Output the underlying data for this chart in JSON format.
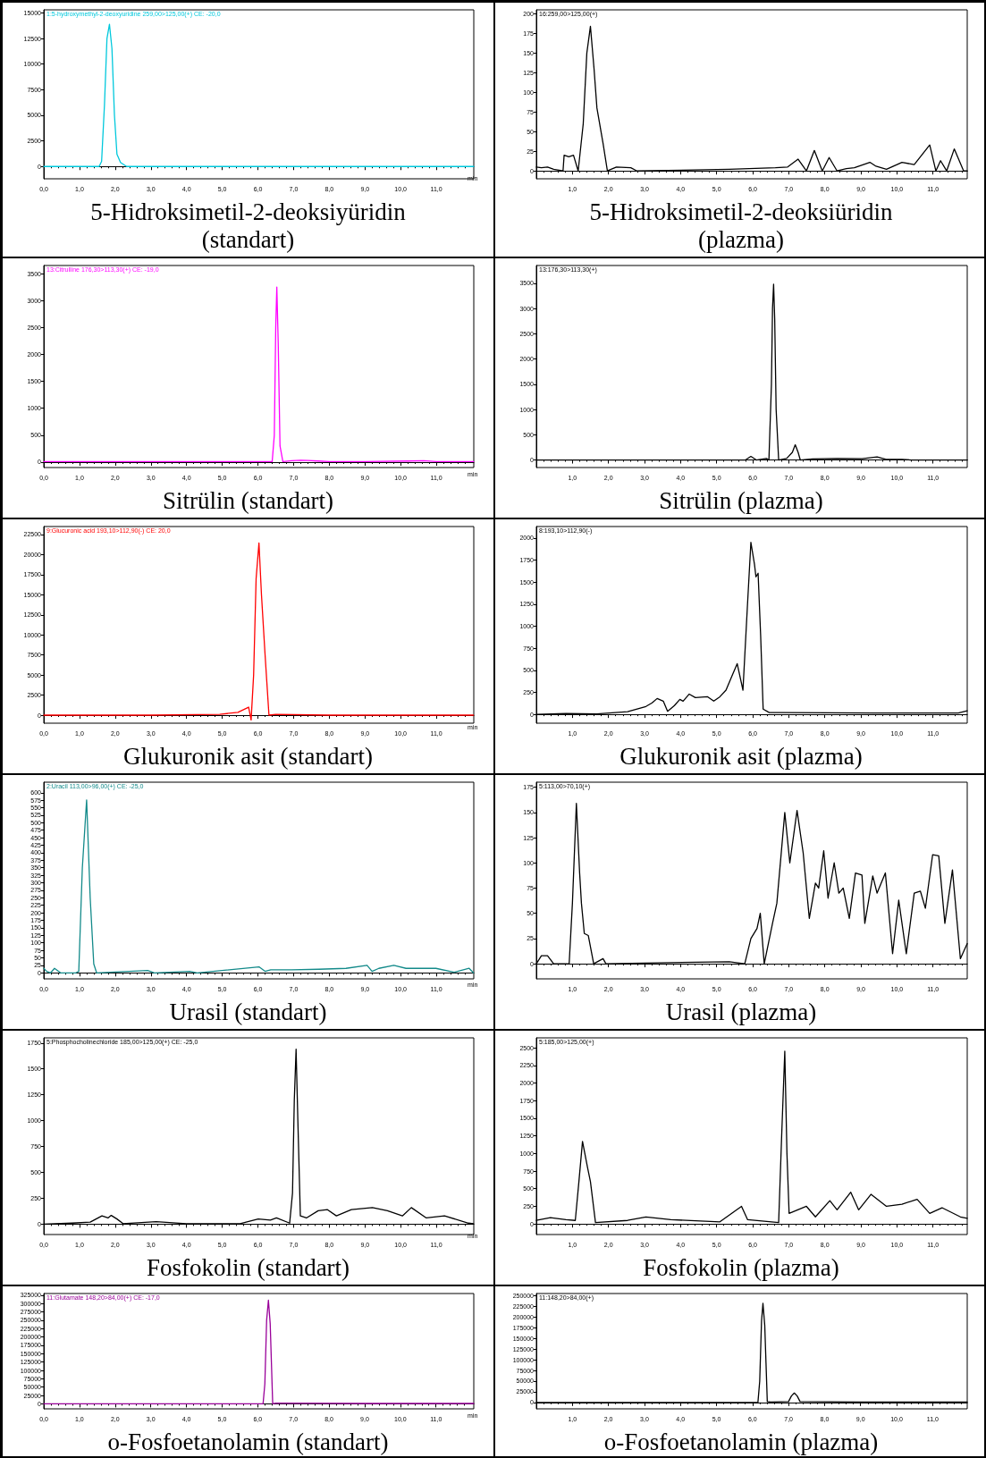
{
  "chart_data": [
    {
      "type": "line",
      "title": "5-Hidroksimetil-2-deoksiyüridin (standart)",
      "subtitle": "1:5-hydroxymethyl-2-deoxyuridine 259,00>125,00(+) CE: -20,0",
      "xlabel": "min",
      "marker": "none",
      "xlim": [
        0,
        12.05
      ],
      "ylim": [
        -1200,
        15300
      ],
      "xticks": [
        {
          "value": 0,
          "label": "0,0"
        },
        {
          "value": 1,
          "label": "1,0"
        },
        {
          "value": 2,
          "label": "2,0"
        },
        {
          "value": 3,
          "label": "3,0"
        },
        {
          "value": 4,
          "label": "4,0"
        },
        {
          "value": 5,
          "label": "5,0"
        },
        {
          "value": 6,
          "label": "6,0"
        },
        {
          "value": 7,
          "label": "7,0"
        },
        {
          "value": 8,
          "label": "8,0"
        },
        {
          "value": 9,
          "label": "9,0"
        },
        {
          "value": 10,
          "label": "10,0"
        },
        {
          "value": 11,
          "label": "11,0"
        }
      ],
      "yticks": [
        0,
        2500,
        5000,
        7500,
        10000,
        12500,
        15000
      ],
      "series": [
        {
          "color": "#00c8dc",
          "x": [
            0,
            0.5,
            1.0,
            1.55,
            1.62,
            1.7,
            1.77,
            1.84,
            1.91,
            1.98,
            2.05,
            2.15,
            2.32,
            3,
            5,
            7,
            9,
            11,
            12.05
          ],
          "values": [
            0,
            0,
            0,
            0,
            500,
            6000,
            12500,
            13900,
            11500,
            5000,
            1200,
            400,
            0,
            0,
            0,
            0,
            0,
            0,
            0
          ]
        }
      ]
    },
    {
      "type": "line",
      "title": "5-Hidroksimetil-2-deoksiüridin (plazma)",
      "subtitle": "16:259,00>125,00(+)",
      "marker": "none",
      "xlim": [
        0,
        11.95
      ],
      "ylim": [
        -10,
        205
      ],
      "xticks": [
        {
          "value": 1,
          "label": "1,0"
        },
        {
          "value": 2,
          "label": "2,0"
        },
        {
          "value": 3,
          "label": "3,0"
        },
        {
          "value": 4,
          "label": "4,0"
        },
        {
          "value": 5,
          "label": "5,0"
        },
        {
          "value": 6,
          "label": "6,0"
        },
        {
          "value": 7,
          "label": "7,0"
        },
        {
          "value": 8,
          "label": "8,0"
        },
        {
          "value": 9,
          "label": "9,0"
        },
        {
          "value": 10,
          "label": "10,0"
        },
        {
          "value": 11,
          "label": "11,0"
        }
      ],
      "yticks": [
        0,
        25,
        50,
        75,
        100,
        125,
        150,
        175,
        200
      ],
      "series": [
        {
          "color": "#000000",
          "x": [
            0,
            0.14,
            0.31,
            0.48,
            0.74,
            0.77,
            0.9,
            1.03,
            1.16,
            1.3,
            1.4,
            1.5,
            1.6,
            1.68,
            1.85,
            1.97,
            2.22,
            2.62,
            2.79,
            5.35,
            6.63,
            6.97,
            7.26,
            7.49,
            7.71,
            7.93,
            8.12,
            8.34,
            8.6,
            8.82,
            9.25,
            9.42,
            9.71,
            10.14,
            10.48,
            10.91,
            11.08,
            11.21,
            11.38,
            11.59,
            11.85,
            11.95
          ],
          "values": [
            5,
            4,
            5,
            2,
            0,
            20,
            18,
            20,
            0,
            60,
            150,
            184,
            130,
            80,
            35,
            0,
            5,
            4,
            0,
            2,
            4,
            5,
            15,
            0,
            26,
            0,
            17,
            0,
            3,
            4,
            11,
            6,
            2,
            11,
            8,
            33,
            0,
            13,
            0,
            28,
            0,
            0
          ]
        }
      ]
    },
    {
      "type": "line",
      "title": "Sitrülin (standart)",
      "subtitle": "13:Citrulline 176,30>113,30(+) CE: -19,0",
      "xlabel": "min",
      "marker": "none",
      "xlim": [
        0,
        12.05
      ],
      "ylim": [
        -100,
        3650
      ],
      "xticks": [
        {
          "value": 0,
          "label": "0,0"
        },
        {
          "value": 1,
          "label": "1,0"
        },
        {
          "value": 2,
          "label": "2,0"
        },
        {
          "value": 3,
          "label": "3,0"
        },
        {
          "value": 4,
          "label": "4,0"
        },
        {
          "value": 5,
          "label": "5,0"
        },
        {
          "value": 6,
          "label": "6,0"
        },
        {
          "value": 7,
          "label": "7,0"
        },
        {
          "value": 8,
          "label": "8,0"
        },
        {
          "value": 9,
          "label": "9,0"
        },
        {
          "value": 10,
          "label": "10,0"
        },
        {
          "value": 11,
          "label": "11,0"
        }
      ],
      "yticks": [
        0,
        500,
        1000,
        1500,
        2000,
        2500,
        3000,
        3500
      ],
      "series": [
        {
          "color": "#ff00ff",
          "x": [
            0,
            2,
            4,
            6,
            6.4,
            6.46,
            6.5,
            6.53,
            6.57,
            6.62,
            6.7,
            6.95,
            7.2,
            7.4,
            7.7,
            8,
            9,
            10.2,
            10.65,
            11,
            12.05
          ],
          "values": [
            10,
            10,
            10,
            10,
            10,
            500,
            2500,
            3250,
            2200,
            300,
            10,
            25,
            35,
            30,
            20,
            10,
            10,
            20,
            25,
            10,
            10
          ]
        }
      ]
    },
    {
      "type": "line",
      "title": "Sitrülin (plazma)",
      "subtitle": "13:176,30>113,30(+)",
      "marker": "none",
      "xlim": [
        0,
        11.95
      ],
      "ylim": [
        -150,
        3850
      ],
      "xticks": [
        {
          "value": 1,
          "label": "1,0"
        },
        {
          "value": 2,
          "label": "2,0"
        },
        {
          "value": 3,
          "label": "3,0"
        },
        {
          "value": 4,
          "label": "4,0"
        },
        {
          "value": 5,
          "label": "5,0"
        },
        {
          "value": 6,
          "label": "6,0"
        },
        {
          "value": 7,
          "label": "7,0"
        },
        {
          "value": 8,
          "label": "8,0"
        },
        {
          "value": 9,
          "label": "9,0"
        },
        {
          "value": 10,
          "label": "10,0"
        },
        {
          "value": 11,
          "label": "11,0"
        }
      ],
      "yticks": [
        0,
        500,
        1000,
        1500,
        2000,
        2500,
        3000,
        3500
      ],
      "series": [
        {
          "color": "#000000",
          "x": [
            0,
            3,
            5.8,
            5.95,
            6.1,
            6.38,
            6.45,
            6.52,
            6.55,
            6.58,
            6.61,
            6.65,
            6.72,
            6.94,
            7.1,
            7.18,
            7.26,
            7.32,
            7.66,
            8.34,
            9.03,
            9.45,
            9.7,
            10.14,
            10.4,
            11.95
          ],
          "values": [
            0,
            0,
            0,
            70,
            0,
            30,
            0,
            1500,
            3000,
            3480,
            2800,
            1000,
            0,
            30,
            150,
            300,
            150,
            0,
            20,
            30,
            25,
            60,
            10,
            10,
            0,
            0
          ]
        }
      ]
    },
    {
      "type": "line",
      "title": "Glukuronik asit (standart)",
      "subtitle": "9:Glucuronic acid 193,10>112,90(-) CE: 20,0",
      "xlabel": "min",
      "marker": "none",
      "xlim": [
        0,
        12.05
      ],
      "ylim": [
        -1000,
        23500
      ],
      "xticks": [
        {
          "value": 0,
          "label": "0,0"
        },
        {
          "value": 1,
          "label": "1,0"
        },
        {
          "value": 2,
          "label": "2,0"
        },
        {
          "value": 3,
          "label": "3,0"
        },
        {
          "value": 4,
          "label": "4,0"
        },
        {
          "value": 5,
          "label": "5,0"
        },
        {
          "value": 6,
          "label": "6,0"
        },
        {
          "value": 7,
          "label": "7,0"
        },
        {
          "value": 8,
          "label": "8,0"
        },
        {
          "value": 9,
          "label": "9,0"
        },
        {
          "value": 10,
          "label": "10,0"
        },
        {
          "value": 11,
          "label": "11,0"
        }
      ],
      "yticks": [
        0,
        2500,
        5000,
        7500,
        10000,
        12500,
        15000,
        17500,
        20000,
        22500
      ],
      "series": [
        {
          "color": "#ff0000",
          "x": [
            0,
            3,
            4.93,
            5.44,
            5.74,
            5.81,
            5.88,
            5.95,
            6.03,
            6.1,
            6.2,
            6.31,
            6.5,
            8,
            12.04
          ],
          "values": [
            0,
            0,
            100,
            350,
            1000,
            -600,
            5000,
            17000,
            21450,
            15000,
            7600,
            0,
            100,
            0,
            0
          ]
        }
      ]
    },
    {
      "type": "line",
      "title": "Glukuronik asit (plazma)",
      "subtitle": "8:193,10>112,90(-)",
      "marker": "none",
      "xlim": [
        0,
        11.95
      ],
      "ylim": [
        -100,
        2130
      ],
      "xticks": [
        {
          "value": 1,
          "label": "1,0"
        },
        {
          "value": 2,
          "label": "2,0"
        },
        {
          "value": 3,
          "label": "3,0"
        },
        {
          "value": 4,
          "label": "4,0"
        },
        {
          "value": 5,
          "label": "5,0"
        },
        {
          "value": 6,
          "label": "6,0"
        },
        {
          "value": 7,
          "label": "7,0"
        },
        {
          "value": 8,
          "label": "8,0"
        },
        {
          "value": 9,
          "label": "9,0"
        },
        {
          "value": 10,
          "label": "10,0"
        },
        {
          "value": 11,
          "label": "11,0"
        }
      ],
      "yticks": [
        0,
        250,
        500,
        750,
        1000,
        1250,
        1500,
        1750,
        2000
      ],
      "series": [
        {
          "color": "#000000",
          "x": [
            0,
            0.82,
            1.68,
            2.53,
            3.04,
            3.21,
            3.35,
            3.52,
            3.64,
            3.83,
            3.98,
            4.07,
            4.24,
            4.41,
            4.75,
            4.92,
            5.09,
            5.26,
            5.44,
            5.57,
            5.73,
            5.85,
            5.95,
            6.05,
            6.09,
            6.15,
            6.22,
            6.29,
            6.46,
            6.8,
            9.37,
            11.7,
            11.95
          ],
          "values": [
            0,
            10,
            5,
            30,
            90,
            130,
            180,
            150,
            35,
            100,
            170,
            150,
            230,
            190,
            200,
            150,
            200,
            275,
            450,
            575,
            275,
            1200,
            1950,
            1700,
            1560,
            1600,
            900,
            60,
            20,
            20,
            15,
            15,
            40
          ]
        }
      ]
    },
    {
      "type": "line",
      "title": "Urasil (standart)",
      "subtitle": "2:Uracil 113,00>96,00(+) CE: -25,0",
      "xlabel": "min",
      "marker": "none",
      "xlim": [
        0,
        12.05
      ],
      "ylim": [
        -20,
        635
      ],
      "xticks": [
        {
          "value": 0,
          "label": "0,0"
        },
        {
          "value": 1,
          "label": "1,0"
        },
        {
          "value": 2,
          "label": "2,0"
        },
        {
          "value": 3,
          "label": "3,0"
        },
        {
          "value": 4,
          "label": "4,0"
        },
        {
          "value": 5,
          "label": "5,0"
        },
        {
          "value": 6,
          "label": "6,0"
        },
        {
          "value": 7,
          "label": "7,0"
        },
        {
          "value": 8,
          "label": "8,0"
        },
        {
          "value": 9,
          "label": "9,0"
        },
        {
          "value": 10,
          "label": "10,0"
        },
        {
          "value": 11,
          "label": "11,0"
        }
      ],
      "yticks": [
        0,
        25,
        50,
        75,
        100,
        125,
        150,
        175,
        200,
        225,
        250,
        275,
        300,
        325,
        350,
        375,
        400,
        425,
        450,
        475,
        500,
        525,
        550,
        575,
        600
      ],
      "series": [
        {
          "color": "#138a8a",
          "x": [
            0,
            0.08,
            0.19,
            0.3,
            0.47,
            0.9,
            0.98,
            1.08,
            1.2,
            1.3,
            1.4,
            1.48,
            2.91,
            3.1,
            4.09,
            4.3,
            6.03,
            6.2,
            6.36,
            6.95,
            7.71,
            8.47,
            9.06,
            9.2,
            9.39,
            9.81,
            10.15,
            10.99,
            11.5,
            11.92,
            12.04
          ],
          "values": [
            15,
            5,
            0,
            15,
            0,
            0,
            5,
            350,
            576,
            250,
            30,
            0,
            8,
            0,
            5,
            0,
            20,
            5,
            10,
            10,
            12,
            15,
            25,
            5,
            15,
            25,
            15,
            15,
            2,
            15,
            0
          ]
        }
      ]
    },
    {
      "type": "line",
      "title": "Urasil (plazma)",
      "subtitle": "5:113,00>70,10(+)",
      "marker": "none",
      "xlim": [
        0,
        11.95
      ],
      "ylim": [
        -15,
        180
      ],
      "xticks": [
        {
          "value": 1,
          "label": "1,0"
        },
        {
          "value": 2,
          "label": "2,0"
        },
        {
          "value": 3,
          "label": "3,0"
        },
        {
          "value": 4,
          "label": "4,0"
        },
        {
          "value": 5,
          "label": "5,0"
        },
        {
          "value": 6,
          "label": "6,0"
        },
        {
          "value": 7,
          "label": "7,0"
        },
        {
          "value": 8,
          "label": "8,0"
        },
        {
          "value": 9,
          "label": "9,0"
        },
        {
          "value": 10,
          "label": "10,0"
        },
        {
          "value": 11,
          "label": "11,0"
        }
      ],
      "yticks": [
        0,
        25,
        50,
        75,
        100,
        125,
        150,
        175
      ],
      "series": [
        {
          "color": "#000000",
          "x": [
            0,
            0.14,
            0.31,
            0.48,
            0.91,
            1.0,
            1.11,
            1.2,
            1.25,
            1.33,
            1.44,
            1.59,
            1.85,
            1.93,
            5.35,
            5.78,
            5.95,
            6.12,
            6.21,
            6.32,
            6.55,
            6.67,
            6.89,
            7.03,
            7.23,
            7.4,
            7.57,
            7.74,
            7.83,
            7.97,
            8.09,
            8.26,
            8.39,
            8.51,
            8.68,
            8.85,
            9.03,
            9.11,
            9.33,
            9.45,
            9.68,
            9.88,
            10.05,
            10.26,
            10.48,
            10.65,
            10.79,
            10.99,
            11.16,
            11.33,
            11.54,
            11.76,
            11.95
          ],
          "values": [
            0,
            8,
            8,
            0,
            0,
            60,
            159,
            90,
            60,
            30,
            28,
            0,
            5,
            0,
            2,
            0,
            25,
            35,
            50,
            0,
            40,
            60,
            150,
            100,
            152,
            110,
            45,
            80,
            75,
            112,
            65,
            100,
            70,
            75,
            45,
            90,
            88,
            40,
            87,
            70,
            90,
            10,
            63,
            10,
            70,
            72,
            55,
            108,
            107,
            40,
            93,
            5,
            20
          ]
        }
      ]
    },
    {
      "type": "line",
      "title": "Fosfokolin (standart)",
      "subtitle": "5:Phosphocholinechloride 185,00>125,00(+) CE: -25,0",
      "xlabel": "min",
      "marker": "none",
      "xlim": [
        0,
        12.05
      ],
      "ylim": [
        -100,
        1800
      ],
      "xticks": [
        {
          "value": 0,
          "label": "0,0"
        },
        {
          "value": 1,
          "label": "1,0"
        },
        {
          "value": 2,
          "label": "2,0"
        },
        {
          "value": 3,
          "label": "3,0"
        },
        {
          "value": 4,
          "label": "4,0"
        },
        {
          "value": 5,
          "label": "5,0"
        },
        {
          "value": 6,
          "label": "6,0"
        },
        {
          "value": 7,
          "label": "7,0"
        },
        {
          "value": 8,
          "label": "8,0"
        },
        {
          "value": 9,
          "label": "9,0"
        },
        {
          "value": 10,
          "label": "10,0"
        },
        {
          "value": 11,
          "label": "11,0"
        }
      ],
      "yticks": [
        0,
        250,
        500,
        750,
        1000,
        1250,
        1500,
        1750
      ],
      "series": [
        {
          "color": "#000000",
          "x": [
            0,
            0.79,
            1.3,
            1.63,
            1.8,
            1.89,
            2.05,
            2.22,
            3.15,
            3.99,
            5.5,
            6.01,
            6.35,
            6.52,
            6.89,
            6.97,
            7.02,
            7.07,
            7.12,
            7.19,
            7.36,
            7.69,
            7.95,
            8.2,
            8.62,
            9.21,
            9.63,
            10.05,
            10.3,
            10.72,
            11.23,
            11.9,
            12.04
          ],
          "values": [
            0,
            10,
            20,
            80,
            60,
            85,
            50,
            5,
            25,
            5,
            5,
            50,
            40,
            60,
            10,
            300,
            1200,
            1690,
            1000,
            80,
            60,
            130,
            140,
            80,
            140,
            160,
            130,
            80,
            160,
            60,
            80,
            10,
            5
          ]
        }
      ]
    },
    {
      "type": "line",
      "title": "Fosfokolin (plazma)",
      "subtitle": "5:185,00>125,00(+)",
      "marker": "none",
      "xlim": [
        0,
        11.95
      ],
      "ylim": [
        -150,
        2640
      ],
      "xticks": [
        {
          "value": 1,
          "label": "1,0"
        },
        {
          "value": 2,
          "label": "2,0"
        },
        {
          "value": 3,
          "label": "3,0"
        },
        {
          "value": 4,
          "label": "4,0"
        },
        {
          "value": 5,
          "label": "5,0"
        },
        {
          "value": 6,
          "label": "6,0"
        },
        {
          "value": 7,
          "label": "7,0"
        },
        {
          "value": 8,
          "label": "8,0"
        },
        {
          "value": 9,
          "label": "9,0"
        },
        {
          "value": 10,
          "label": "10,0"
        },
        {
          "value": 11,
          "label": "11,0"
        }
      ],
      "yticks": [
        0,
        250,
        500,
        750,
        1000,
        1250,
        1500,
        1750,
        2000,
        2250,
        2500
      ],
      "series": [
        {
          "color": "#000000",
          "x": [
            0,
            0.39,
            0.82,
            1.08,
            1.18,
            1.28,
            1.42,
            1.5,
            1.64,
            2.53,
            3.04,
            3.73,
            5.09,
            5.69,
            5.86,
            6.72,
            6.8,
            6.89,
            6.95,
            7.01,
            7.49,
            7.74,
            8.14,
            8.34,
            8.72,
            8.94,
            9.28,
            9.71,
            10.14,
            10.56,
            10.91,
            11.25,
            11.76,
            11.95
          ],
          "values": [
            50,
            90,
            60,
            50,
            600,
            1170,
            800,
            600,
            20,
            50,
            100,
            60,
            30,
            250,
            60,
            20,
            1200,
            2450,
            1000,
            150,
            250,
            100,
            330,
            200,
            450,
            200,
            420,
            250,
            280,
            350,
            150,
            230,
            100,
            80
          ]
        }
      ]
    },
    {
      "type": "line",
      "title": "o-Fosfoetanolamin (standart)",
      "subtitle": "11:Glutamate 148,20>84,00(+) CE: -17,0",
      "xlabel": "min",
      "marker": "none",
      "xlim": [
        0,
        12.06
      ],
      "ylim": [
        -15000,
        330000
      ],
      "xticks": [
        {
          "value": 0,
          "label": "0,0"
        },
        {
          "value": 1,
          "label": "1,0"
        },
        {
          "value": 2,
          "label": "2,0"
        },
        {
          "value": 3,
          "label": "3,0"
        },
        {
          "value": 4,
          "label": "4,0"
        },
        {
          "value": 5,
          "label": "5,0"
        },
        {
          "value": 6,
          "label": "6,0"
        },
        {
          "value": 7,
          "label": "7,0"
        },
        {
          "value": 8,
          "label": "8,0"
        },
        {
          "value": 9,
          "label": "9,0"
        },
        {
          "value": 10,
          "label": "10,0"
        },
        {
          "value": 11,
          "label": "11,0"
        }
      ],
      "yticks": [
        0,
        25000,
        50000,
        75000,
        100000,
        125000,
        150000,
        175000,
        200000,
        225000,
        250000,
        275000,
        300000,
        325000
      ],
      "series": [
        {
          "color": "#990099",
          "x": [
            0,
            3,
            6.15,
            6.2,
            6.25,
            6.3,
            6.35,
            6.42,
            6.5,
            9,
            12.06
          ],
          "values": [
            0,
            0,
            0,
            60000,
            250000,
            310000,
            240000,
            0,
            2000,
            1000,
            1000
          ]
        }
      ]
    },
    {
      "type": "line",
      "title": "o-Fosfoetanolamin (plazma)",
      "subtitle": "11:148,20>84,00(+)",
      "marker": "none",
      "xlim": [
        0,
        11.96
      ],
      "ylim": [
        -15000,
        255000
      ],
      "xticks": [
        {
          "value": 1,
          "label": "1,0"
        },
        {
          "value": 2,
          "label": "2,0"
        },
        {
          "value": 3,
          "label": "3,0"
        },
        {
          "value": 4,
          "label": "4,0"
        },
        {
          "value": 5,
          "label": "5,0"
        },
        {
          "value": 6,
          "label": "6,0"
        },
        {
          "value": 7,
          "label": "7,0"
        },
        {
          "value": 8,
          "label": "8,0"
        },
        {
          "value": 9,
          "label": "9,0"
        },
        {
          "value": 10,
          "label": "10,0"
        },
        {
          "value": 11,
          "label": "11,0"
        }
      ],
      "yticks": [
        0,
        25000,
        50000,
        75000,
        100000,
        125000,
        150000,
        175000,
        200000,
        225000,
        250000
      ],
      "series": [
        {
          "color": "#000000",
          "x": [
            0,
            3,
            6.15,
            6.2,
            6.25,
            6.29,
            6.34,
            6.41,
            6.5,
            7.0,
            7.08,
            7.16,
            7.24,
            7.32,
            9,
            11.96
          ],
          "values": [
            0,
            0,
            0,
            50000,
            190000,
            232000,
            180000,
            2000,
            1000,
            2000,
            15000,
            22000,
            15000,
            2000,
            1000,
            1000
          ]
        }
      ]
    }
  ]
}
